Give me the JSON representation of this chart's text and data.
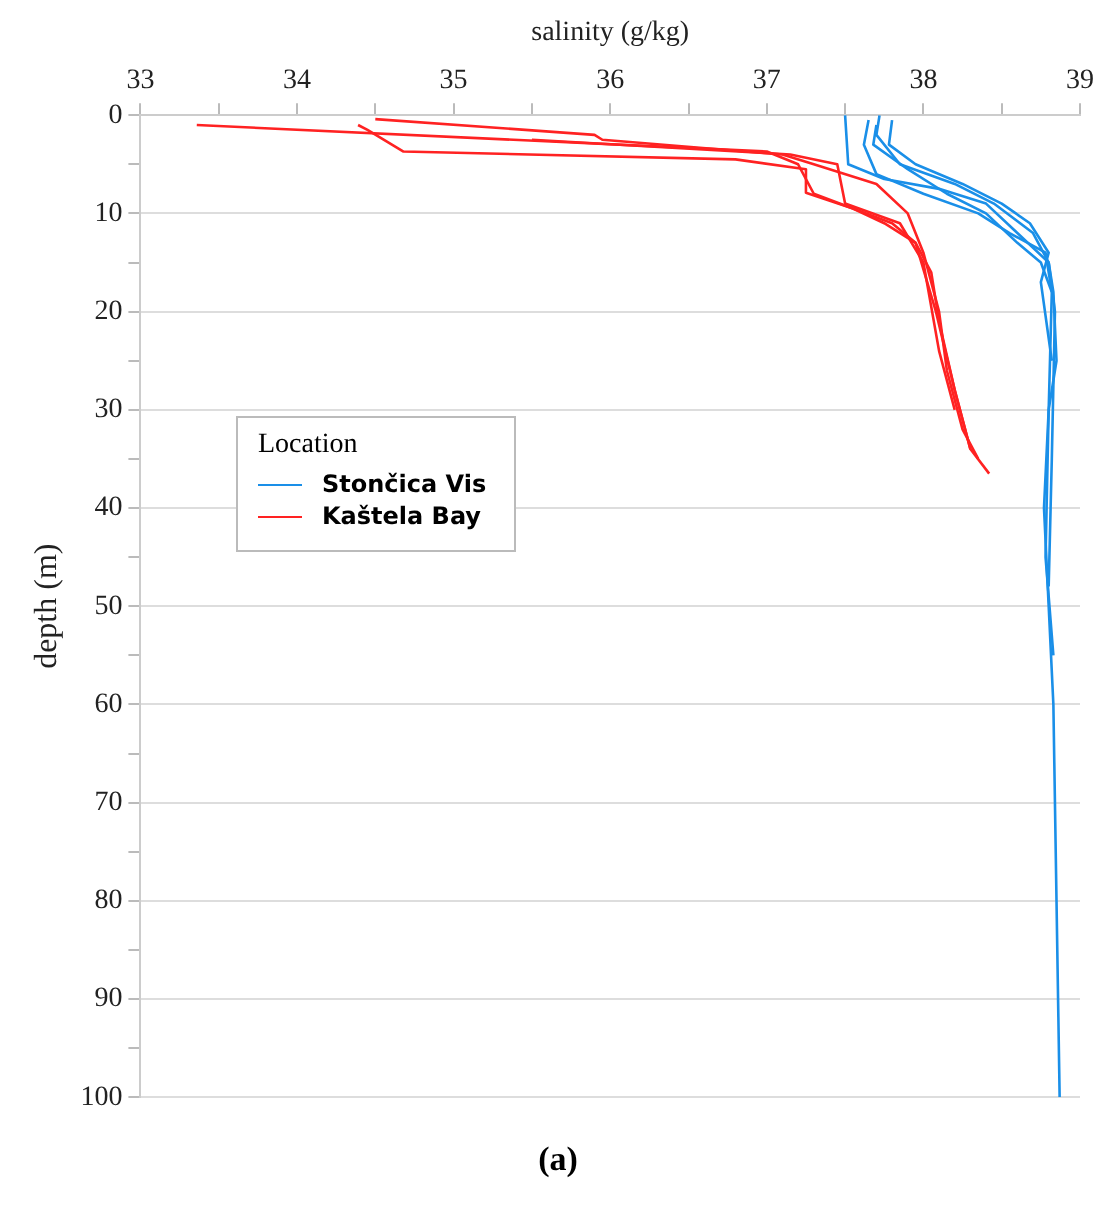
{
  "chart_data": {
    "type": "line",
    "title": "(a)",
    "xlabel": "salinity (g/kg)",
    "ylabel": "depth (m)",
    "legend_title": "Location",
    "legend": "left",
    "xlim": [
      33,
      39
    ],
    "xticks": [
      33,
      {
        "value": 33.5,
        "label": null
      },
      34,
      {
        "value": 34.5,
        "label": null
      },
      35,
      {
        "value": 35.5,
        "label": null
      },
      36,
      {
        "value": 36.5,
        "label": null
      },
      37,
      {
        "value": 37.5,
        "label": null
      },
      38,
      {
        "value": 38.5,
        "label": null
      },
      39
    ],
    "ylim": [
      100,
      0
    ],
    "yticks": [
      0,
      {
        "value": 5,
        "label": null
      },
      10,
      {
        "value": 15,
        "label": null
      },
      20,
      {
        "value": 25,
        "label": null
      },
      30,
      {
        "value": 35,
        "label": null
      },
      40,
      {
        "value": 45,
        "label": null
      },
      50,
      {
        "value": 55,
        "label": null
      },
      60,
      {
        "value": 65,
        "label": null
      },
      70,
      {
        "value": 75,
        "label": null
      },
      80,
      {
        "value": 85,
        "label": null
      },
      90,
      {
        "value": 95,
        "label": null
      },
      100
    ],
    "grid": "y",
    "marker": "none",
    "line_style": "solid",
    "series": [
      {
        "name": "Stončica Vis",
        "color": "#1a8fe8",
        "x": [
          37.5,
          37.52,
          37.75,
          38.1,
          38.4,
          38.6,
          38.8,
          38.83,
          38.85,
          38.8,
          38.77,
          38.8,
          38.83,
          38.85,
          38.87
        ],
        "values": [
          0,
          5,
          6.5,
          7.5,
          9,
          12,
          15,
          18,
          25,
          30,
          40,
          50,
          60,
          80,
          100
        ]
      },
      {
        "color": "#1a8fe8",
        "x": [
          37.65,
          37.62,
          37.7,
          38.0,
          38.35,
          38.55,
          38.78,
          38.82,
          38.8,
          38.78,
          38.83
        ],
        "values": [
          0.5,
          3,
          6,
          8,
          10,
          12,
          14,
          18,
          30,
          45,
          55
        ]
      },
      {
        "color": "#1a8fe8",
        "x": [
          37.72,
          37.7,
          37.85,
          38.2,
          38.45,
          38.7,
          38.8,
          38.84,
          38.82,
          38.8
        ],
        "values": [
          0,
          2,
          5,
          7,
          9,
          12,
          15,
          20,
          35,
          48
        ]
      },
      {
        "color": "#1a8fe8",
        "x": [
          37.8,
          37.78,
          37.95,
          38.25,
          38.5,
          38.68,
          38.8,
          38.75,
          38.82
        ],
        "values": [
          0.5,
          3,
          5,
          7,
          9,
          11,
          14,
          17,
          25
        ]
      },
      {
        "color": "#1a8fe8",
        "x": [
          37.7,
          37.68,
          37.9,
          38.15,
          38.4,
          38.6,
          38.75,
          38.82
        ],
        "values": [
          1,
          3,
          5.5,
          8,
          10,
          13,
          15,
          18
        ]
      },
      {
        "name": "Kaštela Bay",
        "color": "#ff2222",
        "x": [
          33.36,
          37.0,
          37.2,
          37.3,
          37.55,
          37.8,
          37.95,
          38.05,
          38.1,
          38.2,
          38.3,
          38.42
        ],
        "values": [
          1,
          3.7,
          5,
          8,
          9.5,
          11,
          13,
          16,
          21,
          28,
          34,
          36.5
        ]
      },
      {
        "color": "#ff2222",
        "x": [
          34.5,
          35.9,
          35.95,
          37.1,
          37.3,
          37.7,
          37.9,
          38.0,
          38.1,
          38.15,
          38.25,
          38.35
        ],
        "values": [
          0.4,
          2,
          2.5,
          4,
          5,
          7,
          10,
          14,
          20,
          26,
          32,
          35
        ]
      },
      {
        "color": "#ff2222",
        "x": [
          34.39,
          34.45,
          34.68,
          36.8,
          37.25,
          37.25,
          37.55,
          37.75,
          37.95,
          38.08,
          38.2,
          38.3
        ],
        "values": [
          1,
          1.5,
          3.7,
          4.5,
          5.5,
          7.9,
          9.5,
          11,
          13,
          20,
          28,
          34
        ]
      },
      {
        "color": "#ff2222",
        "x": [
          35.5,
          37.15,
          37.45,
          37.5,
          37.85,
          38.0,
          38.1,
          38.2
        ],
        "values": [
          2.5,
          4,
          5,
          9,
          11,
          15,
          24,
          30
        ]
      }
    ]
  }
}
